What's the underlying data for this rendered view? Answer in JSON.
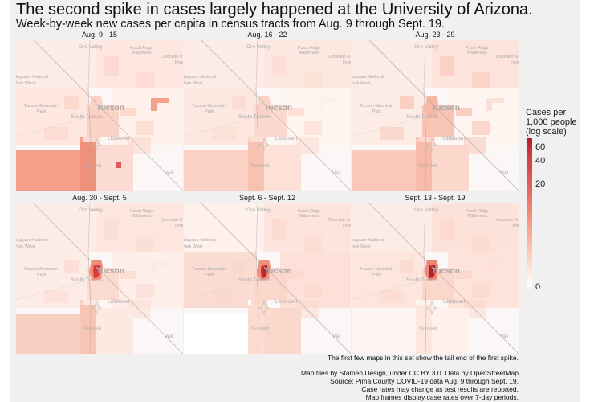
{
  "header": {
    "title": "The second spike in cases largely happened at the University of Arizona.",
    "subtitle": "Week-by-week new cases per capita in census tracts from Aug. 9 through Sept. 19."
  },
  "map_labels": {
    "oro_valley": "Oro Valley",
    "pusch_ridge_1": "Pusch Ridge",
    "pusch_ridge_2": "Wilderness",
    "coronado_1": "Coronado N",
    "coronado_2": "Fore",
    "saguaro_1": "Saguaro National",
    "saguaro_2": "Park West",
    "tmp_1": "Tucson Mountain",
    "tmp_2": "Park",
    "tucson": "Tucson",
    "south_tucson": "South Tucson",
    "littletown": "Littletown",
    "summit": "Summit",
    "vail": "Vail"
  },
  "panels": [
    {
      "label": "Aug. 9 - 15",
      "tracts": {
        "sw_big": "#f4a08a",
        "s_col": "#f08f7a",
        "south": "#fcdcd2",
        "summit_sq": "#e0585a",
        "east_blk": "#f4a08a",
        "core": "#fbd2c6",
        "uofa": "#fbd2c6",
        "uofa_hot": "#fbd2c6",
        "ne": "#fde7e0",
        "nw": "#fdebe5",
        "w": "#fde7e0",
        "e": "#fef1ec"
      }
    },
    {
      "label": "Aug. 16 - 22",
      "tracts": {
        "sw_big": "#fbd2c5",
        "s_col": "#f8c2b2",
        "south": "#fde0d6",
        "summit_sq": "#fde0d6",
        "east_blk": "#fef1ec",
        "core": "#fbd9ce",
        "uofa": "#fbd2c6",
        "uofa_hot": "#fbd2c6",
        "ne": "#fde8e1",
        "nw": "#fdebe5",
        "w": "#fde8e1",
        "e": "#fef5f1"
      }
    },
    {
      "label": "Aug. 23 - 29",
      "tracts": {
        "sw_big": "#f9c8b8",
        "s_col": "#f7bba9",
        "south": "#fcd8cc",
        "summit_sq": "#fcd8cc",
        "east_blk": "#fbe1d8",
        "core": "#f8c4b4",
        "uofa": "#f6b7a5",
        "uofa_hot": "#f6b7a5",
        "ne": "#fce4dc",
        "nw": "#fdebe5",
        "w": "#fdece6",
        "e": "#fef4f0"
      }
    },
    {
      "label": "Aug. 30 - Sept. 5",
      "tracts": {
        "sw_big": "#fad0c2",
        "s_col": "#f8c5b5",
        "south": "#fee9e2",
        "summit_sq": "#fee9e2",
        "east_blk": "#fdeae3",
        "core": "#fbdad0",
        "uofa": "#f28a78",
        "uofa_hot": "#d9393d",
        "ne": "#fde6de",
        "nw": "#fdebe5",
        "w": "#fdebe5",
        "e": "#fdeee9"
      }
    },
    {
      "label": "Sept. 6 - Sept. 12",
      "tracts": {
        "sw_big": "#ffffff",
        "s_col": "#fcdcd1",
        "south": "#fbd8cc",
        "summit_sq": "#fbd8cc",
        "east_blk": "#fde3da",
        "core": "#fbd6ca",
        "uofa": "#f2907d",
        "uofa_hot": "#c0282f",
        "ne": "#fde4dc",
        "nw": "#fef0eb",
        "w": "#fbdcd2",
        "e": "#fde1d8"
      }
    },
    {
      "label": "Sept. 13 - Sept. 19",
      "tracts": {
        "sw_big": "#fef5f2",
        "s_col": "#fde6de",
        "south": "#fef0eb",
        "summit_sq": "#fef0eb",
        "east_blk": "#fde0d7",
        "core": "#fbd6ca",
        "uofa": "#ef8573",
        "uofa_hot": "#b8202b",
        "ne": "#fde2da",
        "nw": "#fdece6",
        "w": "#fde6de",
        "e": "#fde3da"
      }
    }
  ],
  "legend": {
    "title_line1": "Cases per",
    "title_line2": "1,000 people",
    "title_line3": "(log scale)",
    "ticks": [
      "60",
      "40",
      "20",
      "0"
    ],
    "colors": {
      "max": "#b2182b",
      "mid": "#f28a78",
      "min": "#ffffff"
    }
  },
  "captions": {
    "note": "The first few maps in this set show the tail end of the first spike.",
    "line1": "Map tiles by Stamen Design, under CC BY 3.0. Data by OpenStreetMap",
    "line2": "Source: Pima County COVID-19 data Aug. 9 through Sept. 19.",
    "line3": "Case rates may change as test results are reported.",
    "line4": "Map frames display case rates over 7-day periods."
  }
}
